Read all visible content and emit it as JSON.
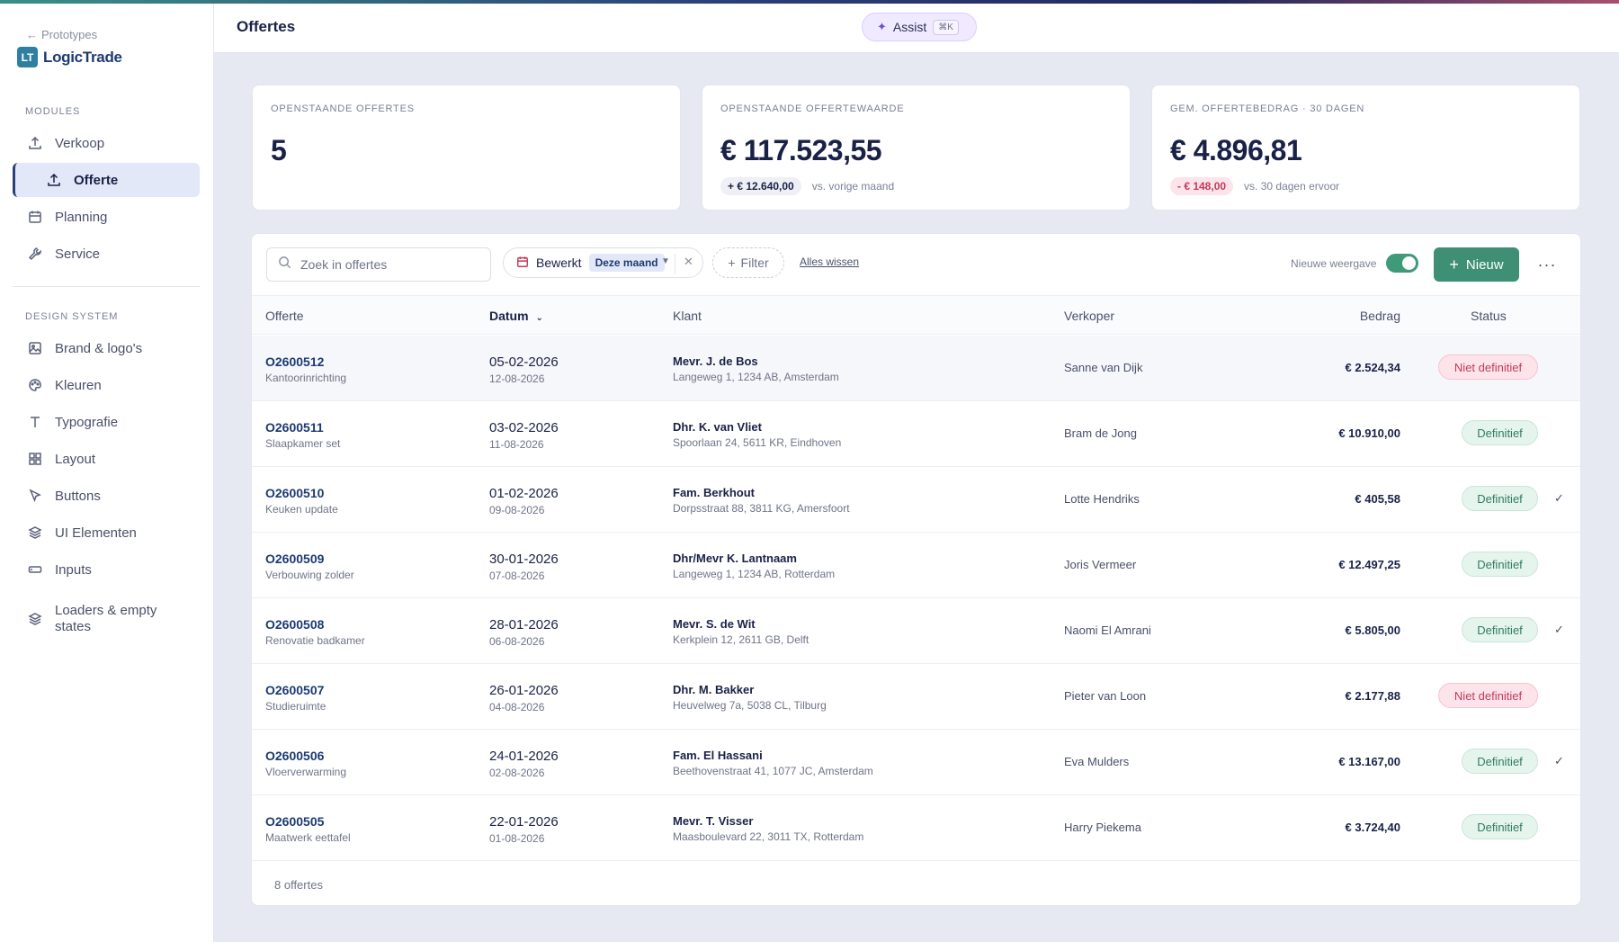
{
  "sidebar": {
    "back_label": "Prototypes",
    "brand_mark": "LT",
    "brand_name": "LogicTrade",
    "modules_label": "MODULES",
    "design_label": "DESIGN SYSTEM",
    "modules": [
      {
        "label": "Verkoop",
        "icon": "upload-icon"
      },
      {
        "label": "Offerte",
        "icon": "upload-icon",
        "active": true
      },
      {
        "label": "Planning",
        "icon": "calendar-icon"
      },
      {
        "label": "Service",
        "icon": "wrench-icon"
      }
    ],
    "design": [
      {
        "label": "Brand & logo's",
        "icon": "image-icon"
      },
      {
        "label": "Kleuren",
        "icon": "palette-icon"
      },
      {
        "label": "Typografie",
        "icon": "type-icon"
      },
      {
        "label": "Layout",
        "icon": "grid-icon"
      },
      {
        "label": "Buttons",
        "icon": "cursor-icon"
      },
      {
        "label": "UI Elementen",
        "icon": "layers-icon"
      },
      {
        "label": "Inputs",
        "icon": "input-icon"
      },
      {
        "label": "Loaders & empty states",
        "icon": "stack-icon"
      }
    ]
  },
  "header": {
    "title": "Offertes",
    "assist_label": "Assist",
    "assist_shortcut": "⌘K"
  },
  "kpis": [
    {
      "label": "OPENSTAANDE OFFERTES",
      "value": "5"
    },
    {
      "label": "OPENSTAANDE OFFERTEWAARDE",
      "value": "€ 117.523,55",
      "delta": "+ € 12.640,00",
      "delta_note": "vs. vorige maand",
      "delta_type": "positive"
    },
    {
      "label": "GEM. OFFERTEBEDRAG · 30 DAGEN",
      "value": "€ 4.896,81",
      "delta": "- € 148,00",
      "delta_note": "vs. 30 dagen ervoor",
      "delta_type": "negative"
    }
  ],
  "toolbar": {
    "search_placeholder": "Zoek in offertes",
    "chip_label": "Bewerkt",
    "chip_value": "Deze maand",
    "filter_label": "Filter",
    "clear_label": "Alles wissen",
    "view_label": "Nieuwe weergave",
    "new_label": "Nieuw"
  },
  "table": {
    "columns": {
      "offerte": "Offerte",
      "datum": "Datum",
      "klant": "Klant",
      "verkoper": "Verkoper",
      "bedrag": "Bedrag",
      "status": "Status"
    },
    "rows": [
      {
        "id": "O2600512",
        "desc": "Kantoorinrichting",
        "date": "05-02-2026",
        "date2": "12-08-2026",
        "client": "Mevr. J. de Bos",
        "address": "Langeweg 1, 1234 AB, Amsterdam",
        "seller": "Sanne van Dijk",
        "amount": "€ 2.524,34",
        "status": "Niet definitief",
        "status_type": "no",
        "check": false
      },
      {
        "id": "O2600511",
        "desc": "Slaapkamer set",
        "date": "03-02-2026",
        "date2": "11-08-2026",
        "client": "Dhr. K. van Vliet",
        "address": "Spoorlaan 24, 5611 KR, Eindhoven",
        "seller": "Bram de Jong",
        "amount": "€ 10.910,00",
        "status": "Definitief",
        "status_type": "ok",
        "check": false
      },
      {
        "id": "O2600510",
        "desc": "Keuken update",
        "date": "01-02-2026",
        "date2": "09-08-2026",
        "client": "Fam. Berkhout",
        "address": "Dorpsstraat 88, 3811 KG, Amersfoort",
        "seller": "Lotte Hendriks",
        "amount": "€ 405,58",
        "status": "Definitief",
        "status_type": "ok",
        "check": true
      },
      {
        "id": "O2600509",
        "desc": "Verbouwing zolder",
        "date": "30-01-2026",
        "date2": "07-08-2026",
        "client": "Dhr/Mevr K. Lantnaam",
        "address": "Langeweg 1, 1234 AB, Rotterdam",
        "seller": "Joris Vermeer",
        "amount": "€ 12.497,25",
        "status": "Definitief",
        "status_type": "ok",
        "check": false
      },
      {
        "id": "O2600508",
        "desc": "Renovatie badkamer",
        "date": "28-01-2026",
        "date2": "06-08-2026",
        "client": "Mevr. S. de Wit",
        "address": "Kerkplein 12, 2611 GB, Delft",
        "seller": "Naomi El Amrani",
        "amount": "€ 5.805,00",
        "status": "Definitief",
        "status_type": "ok",
        "check": true
      },
      {
        "id": "O2600507",
        "desc": "Studieruimte",
        "date": "26-01-2026",
        "date2": "04-08-2026",
        "client": "Dhr. M. Bakker",
        "address": "Heuvelweg 7a, 5038 CL, Tilburg",
        "seller": "Pieter van Loon",
        "amount": "€ 2.177,88",
        "status": "Niet definitief",
        "status_type": "no",
        "check": false
      },
      {
        "id": "O2600506",
        "desc": "Vloerverwarming",
        "date": "24-01-2026",
        "date2": "02-08-2026",
        "client": "Fam. El Hassani",
        "address": "Beethovenstraat 41, 1077 JC, Amsterdam",
        "seller": "Eva Mulders",
        "amount": "€ 13.167,00",
        "status": "Definitief",
        "status_type": "ok",
        "check": true
      },
      {
        "id": "O2600505",
        "desc": "Maatwerk eettafel",
        "date": "22-01-2026",
        "date2": "01-08-2026",
        "client": "Mevr. T. Visser",
        "address": "Maasboulevard 22, 3011 TX, Rotterdam",
        "seller": "Harry Piekema",
        "amount": "€ 3.724,40",
        "status": "Definitief",
        "status_type": "ok",
        "check": false
      }
    ],
    "footer": "8 offertes"
  }
}
